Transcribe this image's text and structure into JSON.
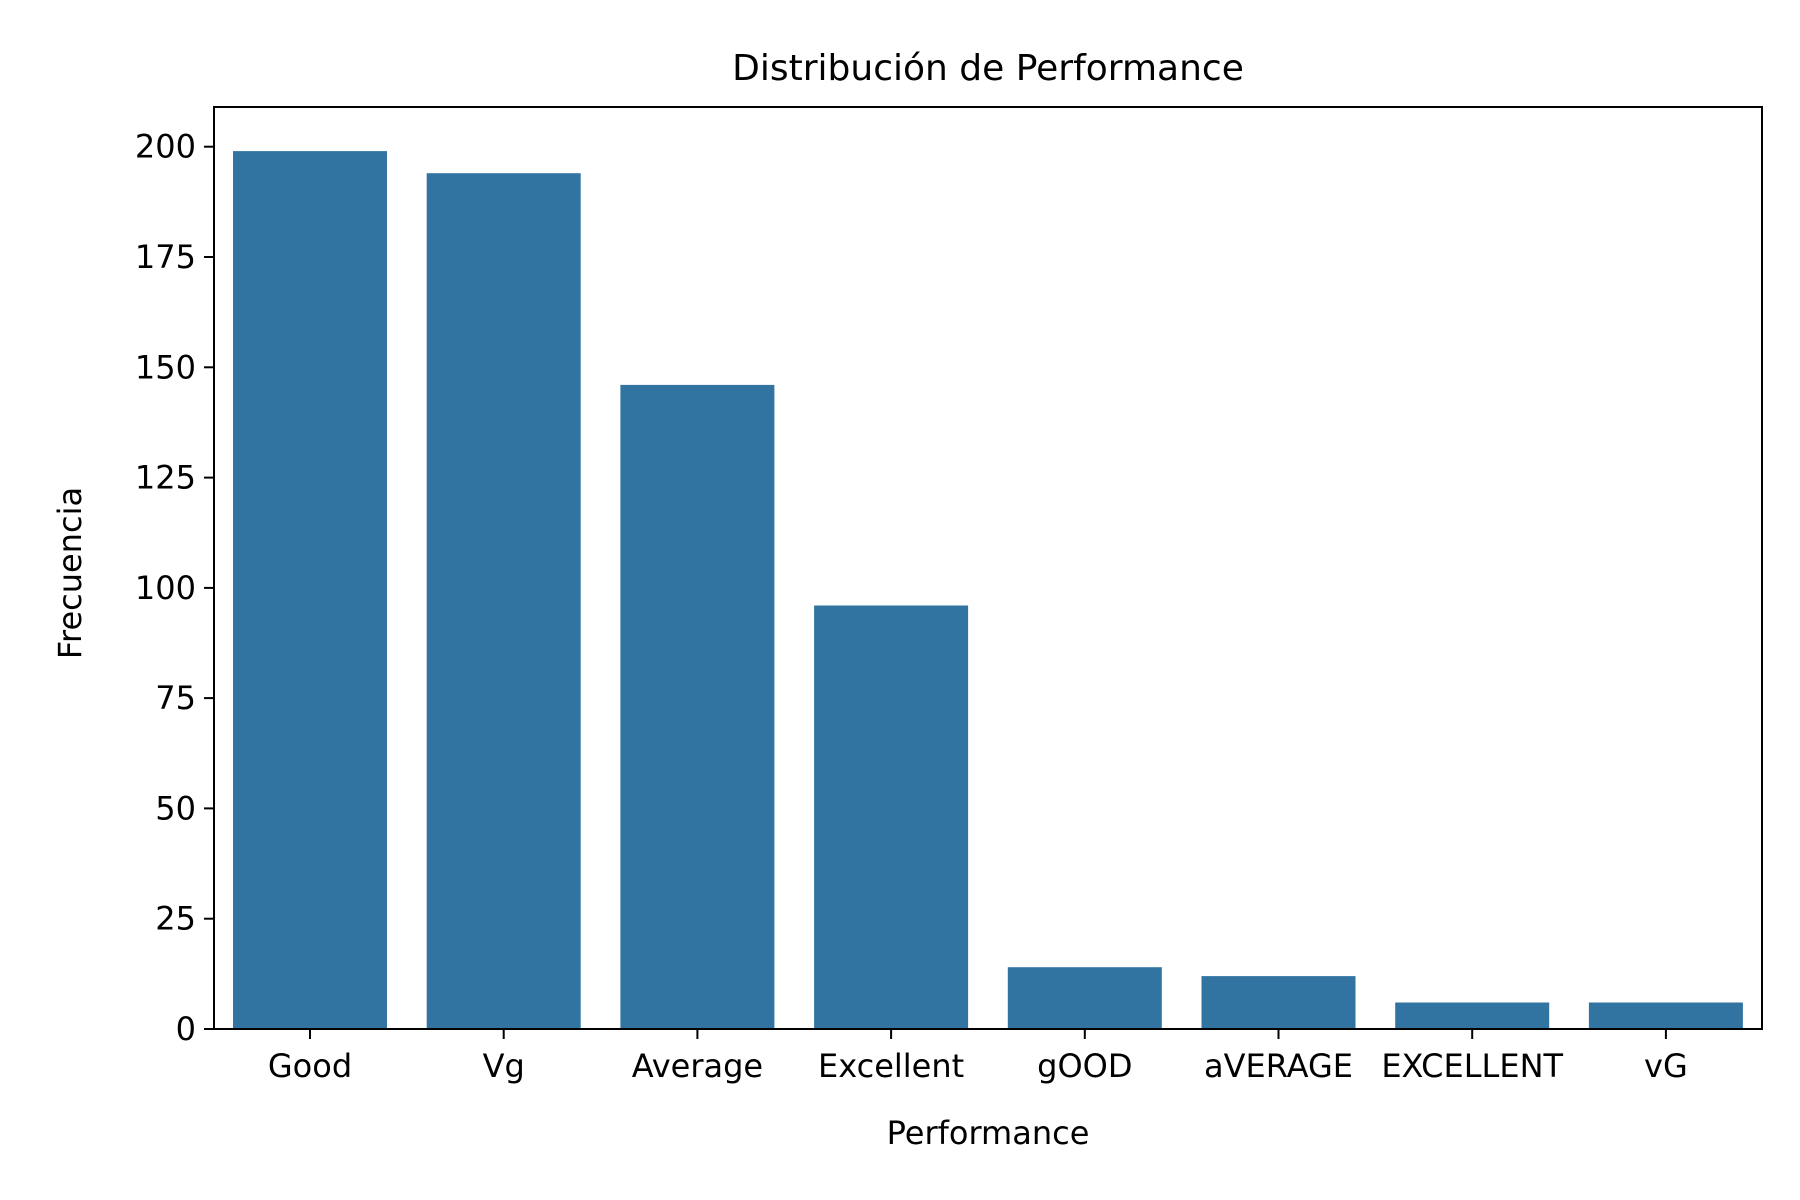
{
  "chart_data": {
    "type": "bar",
    "title": "Distribución de Performance",
    "xlabel": "Performance",
    "ylabel": "Frecuencia",
    "categories": [
      "Good",
      "Vg",
      "Average",
      "Excellent",
      "gOOD",
      "aVERAGE",
      "EXCELLENT",
      "vG"
    ],
    "values": [
      199,
      194,
      146,
      96,
      14,
      12,
      6,
      6
    ],
    "ylim": [
      0,
      209
    ],
    "yticks": [
      0,
      25,
      50,
      75,
      100,
      125,
      150,
      175,
      200
    ],
    "grid": false,
    "legend": "none",
    "bar_color": "#3274a1"
  }
}
